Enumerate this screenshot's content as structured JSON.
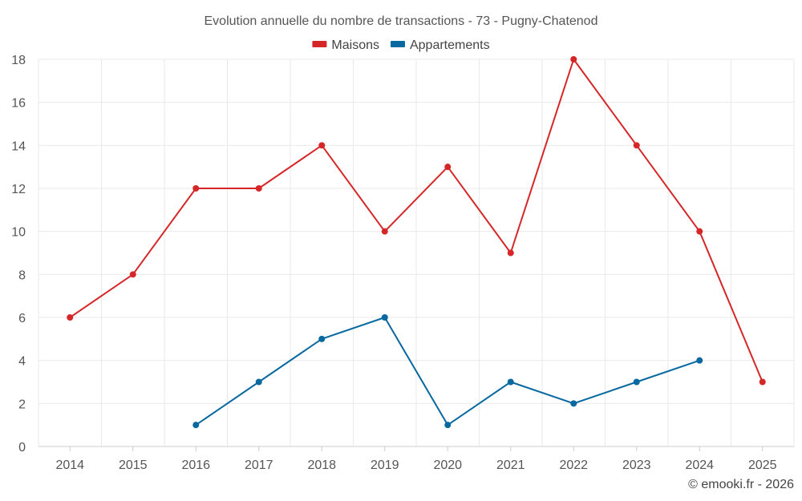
{
  "chart_data": {
    "type": "line",
    "title": "Evolution annuelle du nombre de transactions - 73 - Pugny-Chatenod",
    "categories": [
      "2014",
      "2015",
      "2016",
      "2017",
      "2018",
      "2019",
      "2020",
      "2021",
      "2022",
      "2023",
      "2024",
      "2025"
    ],
    "ylim": [
      0,
      18
    ],
    "yticks": [
      0,
      2,
      4,
      6,
      8,
      10,
      12,
      14,
      16,
      18
    ],
    "grid": true,
    "legend_position": "top-center",
    "series": [
      {
        "name": "Maisons",
        "color": "#d62728",
        "values": [
          6,
          8,
          12,
          12,
          14,
          10,
          13,
          9,
          18,
          14,
          10,
          3
        ]
      },
      {
        "name": "Appartements",
        "color": "#0868a0",
        "values": [
          null,
          null,
          1,
          3,
          5,
          6,
          1,
          3,
          2,
          3,
          4,
          null
        ]
      }
    ],
    "credit": "© emooki.fr - 2026"
  }
}
